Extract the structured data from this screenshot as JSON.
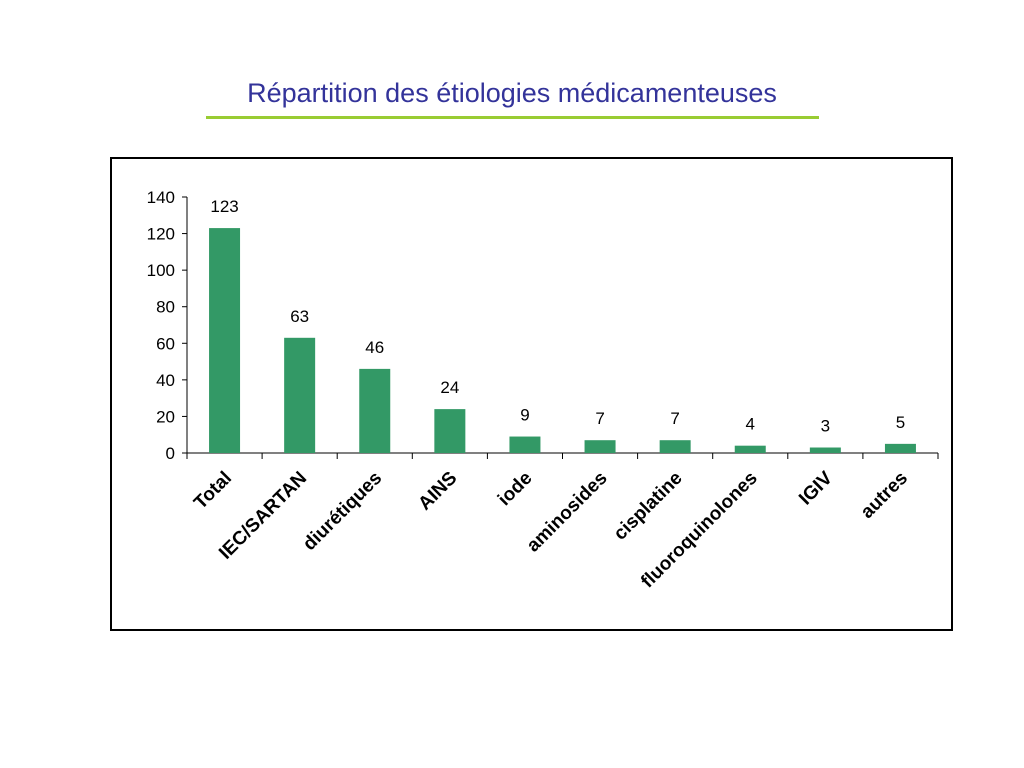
{
  "slide": {
    "title": "Répartition des étiologies médicamenteuses"
  },
  "colors": {
    "title": "#33339a",
    "rule": "#99cc33",
    "bar": "#339966"
  },
  "chart_data": {
    "type": "bar",
    "title": "",
    "xlabel": "",
    "ylabel": "",
    "categories": [
      "Total",
      "IEC/SARTAN",
      "diurétiques",
      "AINS",
      "iode",
      "aminosides",
      "cisplatine",
      "fluoroquinolones",
      "IGIV",
      "autres"
    ],
    "values": [
      123,
      63,
      46,
      24,
      9,
      7,
      7,
      4,
      3,
      5
    ],
    "ylim": [
      0,
      140
    ],
    "yticks": [
      0,
      20,
      40,
      60,
      80,
      100,
      120,
      140
    ],
    "grid": false,
    "legend": "none",
    "data_labels": true
  }
}
